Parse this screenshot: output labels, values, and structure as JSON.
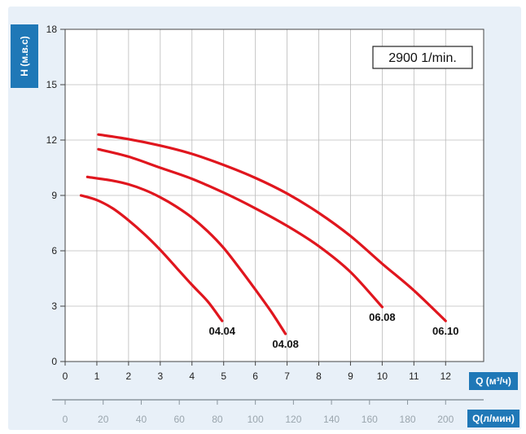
{
  "chart_data": {
    "type": "line",
    "speed_label": "2900 1/min.",
    "ylabel": "H (м.в.с)",
    "xlabel": "Q (м³/ч)",
    "x2label": "Q(л/мин)",
    "ylim": [
      0,
      18
    ],
    "xlim": [
      0,
      13.2
    ],
    "yticks": [
      "0",
      "3",
      "6",
      "9",
      "12",
      "15",
      "18"
    ],
    "xticks": [
      "0",
      "1",
      "2",
      "3",
      "4",
      "5",
      "6",
      "7",
      "8",
      "9",
      "10",
      "11",
      "12"
    ],
    "x2ticks": [
      "0",
      "20",
      "40",
      "60",
      "80",
      "100",
      "120",
      "140",
      "160",
      "180",
      "200"
    ],
    "grid": true,
    "colors": {
      "curve": "#e0161e",
      "badge": "#1f78b7",
      "panel": "#e8f0f8",
      "grid": "#bbbbbb"
    },
    "series": [
      {
        "name": "04.04",
        "x": [
          0.5,
          1,
          1.5,
          2,
          2.5,
          3,
          3.5,
          4,
          4.5,
          4.95
        ],
        "y": [
          9.0,
          8.75,
          8.3,
          7.65,
          6.9,
          6.05,
          5.1,
          4.15,
          3.25,
          2.2
        ]
      },
      {
        "name": "04.08",
        "x": [
          0.7,
          1.5,
          2,
          2.5,
          3,
          3.5,
          4,
          4.5,
          5,
          5.5,
          6,
          6.5,
          6.95
        ],
        "y": [
          10.0,
          9.8,
          9.6,
          9.3,
          8.9,
          8.4,
          7.8,
          7.05,
          6.15,
          5.05,
          3.9,
          2.7,
          1.5
        ]
      },
      {
        "name": "06.08",
        "x": [
          1.05,
          2,
          3,
          4,
          5,
          6,
          7,
          8,
          9,
          10
        ],
        "y": [
          11.5,
          11.1,
          10.5,
          9.9,
          9.15,
          8.3,
          7.35,
          6.25,
          4.85,
          2.95
        ]
      },
      {
        "name": "06.10",
        "x": [
          1.05,
          2,
          3,
          4,
          5,
          6,
          7,
          8,
          9,
          10,
          11,
          12
        ],
        "y": [
          12.3,
          12.05,
          11.7,
          11.25,
          10.65,
          9.95,
          9.1,
          8.05,
          6.8,
          5.3,
          3.85,
          2.2
        ]
      }
    ]
  }
}
